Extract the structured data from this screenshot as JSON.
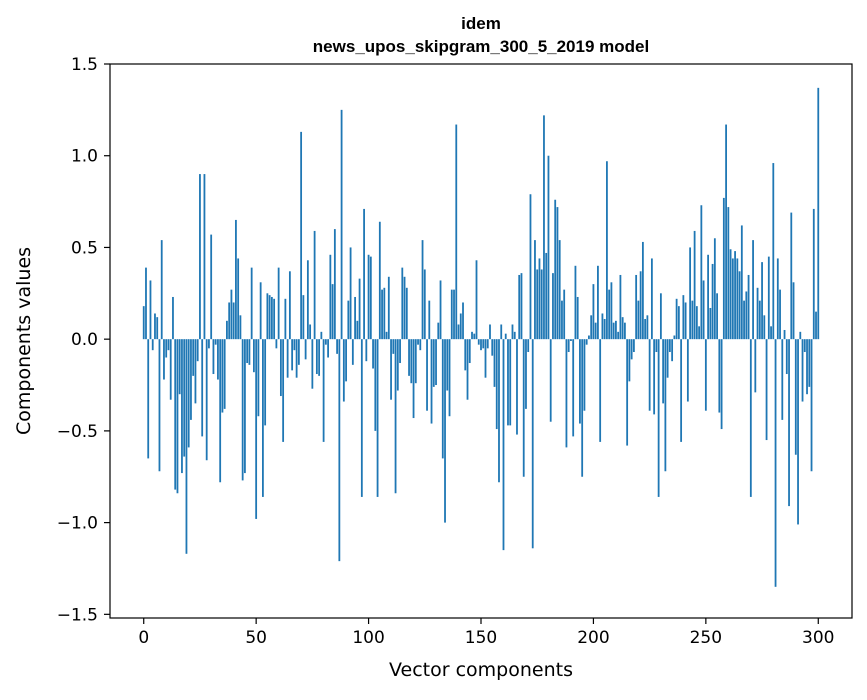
{
  "chart_data": {
    "type": "bar",
    "title_line1": "idem",
    "title_line2": "news_upos_skipgram_300_5_2019 model",
    "xlabel": "Vector components",
    "ylabel": "Components values",
    "xlim": [
      -15,
      315
    ],
    "ylim": [
      -1.52,
      1.5
    ],
    "xticks": [
      0,
      50,
      100,
      150,
      200,
      250,
      300
    ],
    "xtick_labels": [
      "0",
      "50",
      "100",
      "150",
      "200",
      "250",
      "300"
    ],
    "yticks": [
      -1.5,
      -1.0,
      -0.5,
      0.0,
      0.5,
      1.0,
      1.5
    ],
    "ytick_labels": [
      "−1.5",
      "−1.0",
      "−0.5",
      "0.0",
      "0.5",
      "1.0",
      "1.5"
    ],
    "grid": false,
    "bar_color": "#1f77b4",
    "bar_width": 0.8,
    "values": [
      0.18,
      0.39,
      -0.65,
      0.32,
      -0.06,
      0.14,
      0.12,
      -0.72,
      0.54,
      -0.22,
      -0.1,
      -0.06,
      -0.33,
      0.23,
      -0.82,
      -0.84,
      -0.3,
      -0.73,
      -0.64,
      -1.17,
      -0.59,
      -0.44,
      -0.2,
      -0.35,
      -0.12,
      0.9,
      -0.53,
      0.9,
      -0.66,
      -0.05,
      0.57,
      -0.19,
      -0.03,
      -0.22,
      -0.78,
      -0.4,
      -0.38,
      0.1,
      0.2,
      0.27,
      0.2,
      0.65,
      0.44,
      0.13,
      -0.77,
      -0.73,
      -0.13,
      -0.14,
      0.39,
      -0.18,
      -0.98,
      -0.42,
      0.31,
      -0.86,
      -0.47,
      0.25,
      0.24,
      0.23,
      0.22,
      -0.05,
      0.39,
      -0.31,
      -0.56,
      0.22,
      -0.21,
      0.37,
      -0.17,
      -0.06,
      -0.21,
      -0.14,
      1.13,
      0.24,
      -0.11,
      0.43,
      0.08,
      -0.27,
      0.59,
      -0.19,
      -0.2,
      0.04,
      -0.56,
      -0.03,
      -0.1,
      0.46,
      0.3,
      0.6,
      -0.08,
      -1.21,
      1.25,
      -0.34,
      -0.23,
      0.21,
      0.5,
      -0.14,
      0.23,
      0.1,
      0.33,
      -0.86,
      0.71,
      -0.12,
      0.46,
      0.45,
      -0.16,
      -0.5,
      -0.86,
      0.64,
      0.27,
      0.28,
      0.04,
      0.34,
      -0.33,
      -0.08,
      -0.84,
      -0.28,
      -0.13,
      0.39,
      0.34,
      0.28,
      -0.2,
      -0.24,
      -0.43,
      -0.24,
      -0.03,
      -0.06,
      0.54,
      0.38,
      -0.39,
      0.21,
      -0.46,
      -0.26,
      -0.25,
      0.09,
      0.32,
      -0.65,
      -1.0,
      -0.28,
      -0.42,
      0.27,
      0.27,
      1.17,
      0.08,
      0.14,
      0.2,
      -0.17,
      -0.33,
      -0.13,
      0.04,
      0.03,
      0.43,
      -0.03,
      -0.06,
      -0.05,
      -0.21,
      -0.05,
      0.08,
      -0.09,
      -0.26,
      -0.49,
      -0.78,
      0.08,
      -1.15,
      0.03,
      -0.47,
      -0.47,
      0.08,
      0.04,
      -0.52,
      0.35,
      0.36,
      -0.75,
      -0.38,
      -0.07,
      0.79,
      -1.14,
      0.54,
      0.38,
      0.44,
      0.38,
      1.22,
      0.47,
      1.0,
      -0.45,
      0.36,
      0.76,
      0.72,
      0.54,
      0.21,
      0.27,
      -0.59,
      -0.07,
      -0.01,
      -0.53,
      0.4,
      0.23,
      -0.46,
      -0.75,
      -0.39,
      -0.03,
      0.02,
      0.13,
      0.3,
      0.09,
      0.4,
      -0.56,
      0.14,
      0.11,
      0.97,
      0.27,
      0.31,
      0.09,
      0.1,
      0.04,
      0.35,
      0.12,
      0.09,
      -0.58,
      -0.23,
      -0.11,
      -0.07,
      0.35,
      0.21,
      0.37,
      0.53,
      0.11,
      0.13,
      -0.39,
      0.44,
      -0.41,
      -0.07,
      -0.86,
      0.25,
      -0.35,
      -0.72,
      -0.21,
      -0.07,
      -0.12,
      0.02,
      0.22,
      0.18,
      -0.56,
      0.24,
      0.2,
      -0.34,
      0.5,
      0.21,
      0.59,
      0.18,
      0.07,
      0.73,
      0.32,
      -0.39,
      0.46,
      0.17,
      0.41,
      0.55,
      0.25,
      -0.4,
      -0.49,
      0.77,
      1.17,
      0.72,
      0.49,
      0.44,
      0.48,
      0.44,
      0.37,
      0.62,
      0.21,
      0.26,
      0.35,
      -0.86,
      0.54,
      -0.29,
      0.28,
      0.21,
      0.42,
      0.13,
      -0.55,
      0.45,
      0.07,
      0.96,
      -1.35,
      0.44,
      0.27,
      -0.44,
      0.05,
      -0.19,
      -0.91,
      0.69,
      0.31,
      -0.63,
      -1.01,
      0.04,
      -0.34,
      -0.07,
      -0.3,
      -0.26,
      -0.72,
      0.71,
      0.15,
      1.37
    ]
  }
}
